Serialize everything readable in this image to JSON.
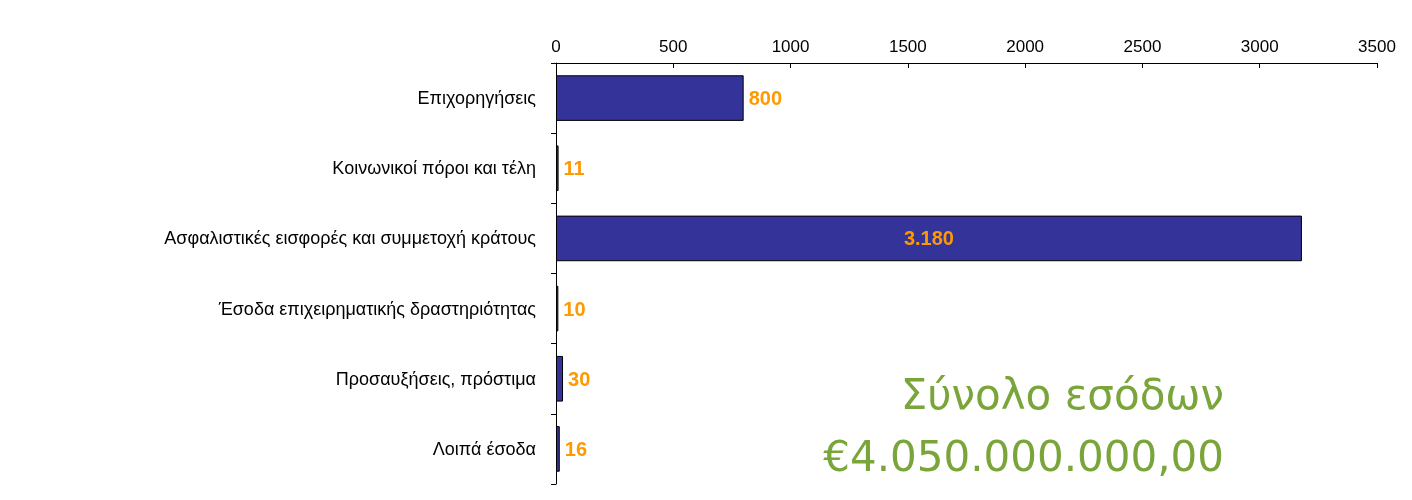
{
  "chart_data": {
    "type": "bar",
    "orientation": "horizontal",
    "categories": [
      "Επιχορηγήσεις",
      "Κοινωνικοί πόροι και τέλη",
      "Ασφαλιστικές εισφορές και συμμετοχή κράτους",
      "Έσοδα επιχειρηματικής δραστηριότητας",
      "Προσαυξήσεις, πρόστιμα",
      "Λοιπά έσοδα"
    ],
    "values": [
      800,
      11,
      3180,
      10,
      30,
      16
    ],
    "value_labels": [
      "800",
      "11",
      "3.180",
      "10",
      "30",
      "16"
    ],
    "color": "#333399",
    "xlim": [
      0,
      3500
    ],
    "xticks": [
      0,
      500,
      1000,
      1500,
      2000,
      2500,
      3000,
      3500
    ],
    "grid": false,
    "annotations": [
      "Σύνολο εσόδων",
      "€4.050.000.000,00"
    ]
  }
}
